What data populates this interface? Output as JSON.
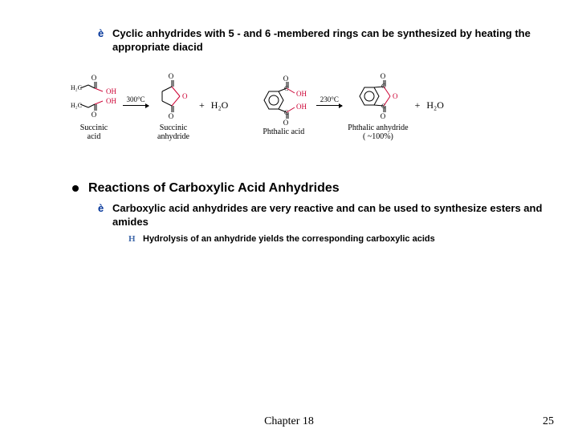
{
  "bullet1": {
    "arrow": "è",
    "text": "Cyclic  anhydrides with 5 - and 6 -membered rings can be synthesized by heating the appropriate diacid"
  },
  "reaction1": {
    "reactant_label": "Succinic\nacid",
    "condition": "300°C",
    "product_label": "Succinic\nanhydride",
    "byproduct": "H₂O"
  },
  "reaction2": {
    "reactant_label": "Phthalic acid",
    "condition": "230°C",
    "product_label": "Phthalic anhydride\n( ~100%)",
    "byproduct": "H₂O"
  },
  "main_bullet": {
    "text": "Reactions of Carboxylic Acid Anhydrides"
  },
  "bullet2": {
    "arrow": "è",
    "text": "Carboxylic acid anhydrides are very reactive and can be used to synthesize esters and amides"
  },
  "subsub": {
    "marker": "H",
    "text": "Hydrolysis of an anhydride yields the corresponding carboxylic acids"
  },
  "footer": {
    "chapter": "Chapter 18",
    "page": "25"
  },
  "colors": {
    "arrow_blue": "#003399",
    "bond_red": "#cc0033",
    "text": "#000000",
    "background": "#ffffff"
  }
}
